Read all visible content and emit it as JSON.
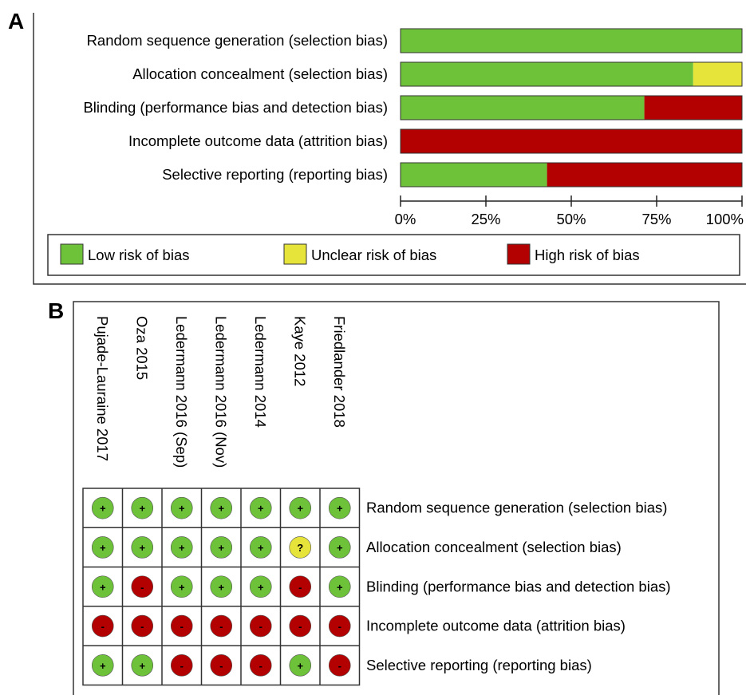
{
  "panel_a_letter": "A",
  "panel_b_letter": "B",
  "chart_data": [
    {
      "type": "bar",
      "orientation": "horizontal",
      "stacked": true,
      "categories": [
        "Random sequence generation (selection bias)",
        "Allocation concealment (selection bias)",
        "Blinding (performance bias and detection bias)",
        "Incomplete outcome data (attrition bias)",
        "Selective reporting (reporting bias)"
      ],
      "series": [
        {
          "name": "Low risk of bias",
          "color": "#6dc23a",
          "values": [
            100,
            85.7,
            71.4,
            0,
            42.9
          ]
        },
        {
          "name": "Unclear risk of bias",
          "color": "#e6e43a",
          "values": [
            0,
            14.3,
            0,
            0,
            0
          ]
        },
        {
          "name": "High risk of bias",
          "color": "#b30000",
          "values": [
            0,
            0,
            28.6,
            100,
            57.1
          ]
        }
      ],
      "xlim": [
        0,
        100
      ],
      "xticks": [
        "0%",
        "25%",
        "50%",
        "75%",
        "100%"
      ],
      "legend_position": "bottom"
    },
    {
      "type": "table",
      "studies": [
        "Pujade-Lauraine 2017",
        "Oza 2015",
        "Ledermann 2016 (Sep)",
        "Ledermann 2016 (Nov)",
        "Ledermann 2014",
        "Kaye 2012",
        "Friedlander 2018"
      ],
      "domains": [
        "Random sequence generation (selection bias)",
        "Allocation concealment (selection bias)",
        "Blinding (performance bias and detection bias)",
        "Incomplete outcome data (attrition bias)",
        "Selective reporting (reporting bias)"
      ],
      "judgements": [
        [
          "+",
          "+",
          "+",
          "+",
          "+",
          "+",
          "+"
        ],
        [
          "+",
          "+",
          "+",
          "+",
          "+",
          "?",
          "+"
        ],
        [
          "+",
          "-",
          "+",
          "+",
          "+",
          "-",
          "+"
        ],
        [
          "-",
          "-",
          "-",
          "-",
          "-",
          "-",
          "-"
        ],
        [
          "+",
          "+",
          "-",
          "-",
          "-",
          "+",
          "-"
        ]
      ],
      "symbol_colors": {
        "+": "#6dc23a",
        "?": "#e6e43a",
        "-": "#b30000"
      }
    }
  ]
}
